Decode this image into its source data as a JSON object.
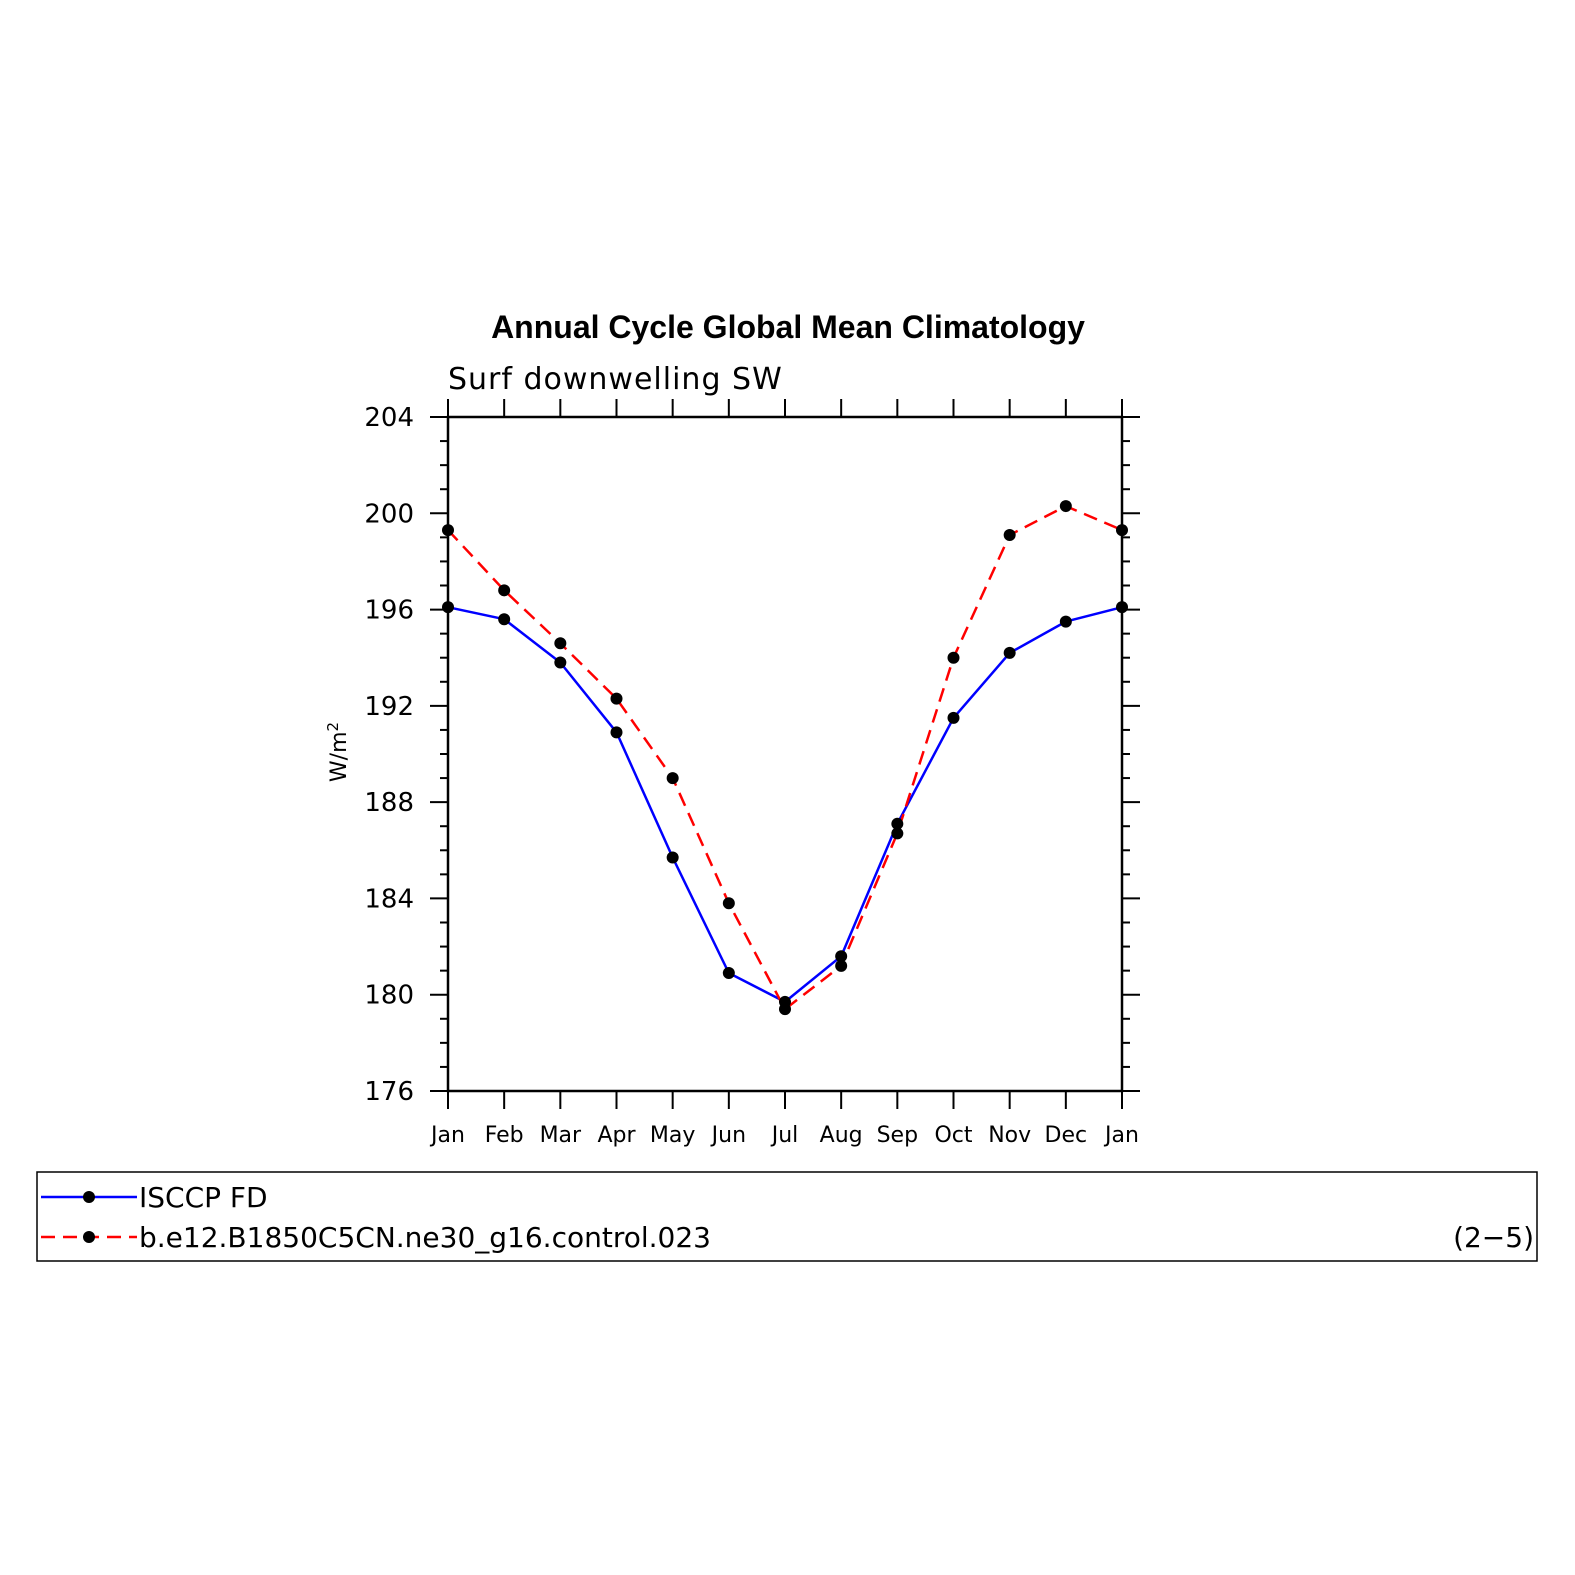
{
  "chart_data": {
    "type": "line",
    "title": "Annual Cycle Global Mean Climatology",
    "subtitle": "Surf downwelling SW",
    "ylabel": "W/m",
    "ylabel_sup": "2",
    "categories": [
      "Jan",
      "Feb",
      "Mar",
      "Apr",
      "May",
      "Jun",
      "Jul",
      "Aug",
      "Sep",
      "Oct",
      "Nov",
      "Dec",
      "Jan"
    ],
    "ylim": [
      176,
      204
    ],
    "yticks": [
      "176",
      "180",
      "184",
      "188",
      "192",
      "196",
      "200",
      "204"
    ],
    "series": [
      {
        "name": "ISCCP FD",
        "color": "#0000ff",
        "dash": "solid",
        "values": [
          196.1,
          195.6,
          193.8,
          190.9,
          185.7,
          180.9,
          179.7,
          181.6,
          187.1,
          191.5,
          194.2,
          195.5,
          196.1
        ]
      },
      {
        "name": "b.e12.B1850C5CN.ne30_g16.control.023",
        "color": "#ff0000",
        "dash": "dashed",
        "values": [
          199.3,
          196.8,
          194.6,
          192.3,
          189.0,
          183.8,
          179.4,
          181.2,
          186.7,
          194.0,
          199.1,
          200.3,
          199.3
        ]
      }
    ],
    "panel_label": "(2−5)",
    "legend_position": "bottom"
  }
}
